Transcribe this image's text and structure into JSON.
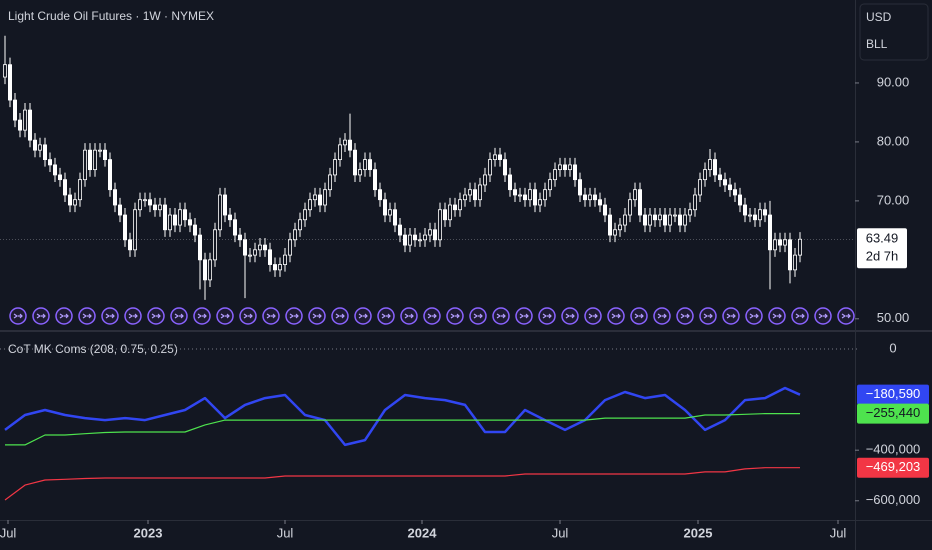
{
  "chart_data": [
    {
      "type": "candlestick",
      "title": "Light Crude Oil Futures · 1W · NYMEX",
      "currency": "USD",
      "unit": "BLL",
      "countdown": "2d 7h",
      "color": "#ffffff",
      "open": [
        91.0,
        93.1,
        87.1,
        83.7,
        82.0,
        85.4,
        80.3,
        78.6,
        79.5,
        77.0,
        76.1,
        74.4,
        73.6,
        71.0,
        69.3,
        70.2,
        73.6,
        78.6,
        75.3,
        78.6,
        78.6,
        77.0,
        71.9,
        69.3,
        67.6,
        63.4,
        61.7,
        68.5,
        70.2,
        70.2,
        69.3,
        68.5,
        69.3,
        65.1,
        67.6,
        65.9,
        68.5,
        66.8,
        65.9,
        64.2,
        60.0,
        56.6,
        60.0,
        65.1,
        71.0,
        67.6,
        66.8,
        64.2,
        63.4,
        60.8,
        60.8,
        61.7,
        62.5,
        61.7,
        59.2,
        58.3,
        59.2,
        60.8,
        63.4,
        65.1,
        66.8,
        68.5,
        70.2,
        71.0,
        69.3,
        71.9,
        74.4,
        77.0,
        79.5,
        80.3,
        78.6,
        74.4,
        75.3,
        77.0,
        75.3,
        71.9,
        70.2,
        67.6,
        68.5,
        65.9,
        64.2,
        62.5,
        64.2,
        63.4,
        63.4,
        64.2,
        65.1,
        63.4,
        68.5,
        66.8,
        69.3,
        68.5,
        70.2,
        71.0,
        71.9,
        70.2,
        72.7,
        74.4,
        77.0,
        77.8,
        77.0,
        74.4,
        71.9,
        71.0,
        71.0,
        70.2,
        71.9,
        69.3,
        70.2,
        71.9,
        73.6,
        75.3,
        76.1,
        75.3,
        76.1,
        73.6,
        71.0,
        70.2,
        71.0,
        70.2,
        69.3,
        67.6,
        64.2,
        65.1,
        65.9,
        67.6,
        70.2,
        71.9,
        67.6,
        65.9,
        67.6,
        66.8,
        67.6,
        65.9,
        67.6,
        67.6,
        65.9,
        67.6,
        68.5,
        71.0,
        73.6,
        75.3,
        77.0,
        74.4,
        73.6,
        72.7,
        71.9,
        71.0,
        69.3,
        67.6,
        67.6,
        66.8,
        68.5,
        67.6,
        61.7,
        63.4,
        62.5,
        63.4,
        58.3,
        60.8
      ],
      "high": [
        98.0,
        94.3,
        88.3,
        84.9,
        86.6,
        86.6,
        81.5,
        80.7,
        80.7,
        78.2,
        77.3,
        75.6,
        74.8,
        72.2,
        71.4,
        74.8,
        79.8,
        79.8,
        79.8,
        79.8,
        79.8,
        78.2,
        73.1,
        70.5,
        68.8,
        64.6,
        69.7,
        71.4,
        71.4,
        71.4,
        70.5,
        70.5,
        70.5,
        68.8,
        68.8,
        69.7,
        69.7,
        68.0,
        67.1,
        65.4,
        61.2,
        61.2,
        66.3,
        72.2,
        72.2,
        68.8,
        68.0,
        65.4,
        64.6,
        62.0,
        62.9,
        63.7,
        63.7,
        62.9,
        60.4,
        60.4,
        62.0,
        64.6,
        66.3,
        68.0,
        69.7,
        71.4,
        72.2,
        72.2,
        73.1,
        75.6,
        78.2,
        80.7,
        81.5,
        84.8,
        79.8,
        76.5,
        78.2,
        78.2,
        76.5,
        73.1,
        71.4,
        69.7,
        69.7,
        67.1,
        65.4,
        65.4,
        65.4,
        64.6,
        65.4,
        66.3,
        66.3,
        69.7,
        69.7,
        70.5,
        70.5,
        71.4,
        72.2,
        73.1,
        73.1,
        73.9,
        75.6,
        78.2,
        79.0,
        79.0,
        78.2,
        75.6,
        73.1,
        72.2,
        72.2,
        73.1,
        73.1,
        71.4,
        73.1,
        74.8,
        76.5,
        77.3,
        77.3,
        77.3,
        77.3,
        74.8,
        72.2,
        72.2,
        72.2,
        71.4,
        70.5,
        68.8,
        66.3,
        67.1,
        68.8,
        71.4,
        73.1,
        73.1,
        68.8,
        68.8,
        68.8,
        68.8,
        68.8,
        68.8,
        68.8,
        68.8,
        68.8,
        69.7,
        72.2,
        74.8,
        76.5,
        78.8,
        78.2,
        75.6,
        74.8,
        73.9,
        73.1,
        72.2,
        70.5,
        68.8,
        68.8,
        69.7,
        69.7,
        70.0,
        64.6,
        64.6,
        64.6,
        64.6,
        62.0,
        64.7
      ],
      "low": [
        89.8,
        85.9,
        82.5,
        80.8,
        80.8,
        79.1,
        77.4,
        77.4,
        75.8,
        74.9,
        73.2,
        72.4,
        69.8,
        68.1,
        68.1,
        69.0,
        72.4,
        74.1,
        74.1,
        77.4,
        75.8,
        70.7,
        68.1,
        66.4,
        62.2,
        60.5,
        60.5,
        67.3,
        69.0,
        68.1,
        67.3,
        67.3,
        63.9,
        63.9,
        64.7,
        64.7,
        65.6,
        64.7,
        63.0,
        55.0,
        53.2,
        55.4,
        58.8,
        63.9,
        66.4,
        65.6,
        63.0,
        62.2,
        53.5,
        59.6,
        59.6,
        60.5,
        60.5,
        58.0,
        57.1,
        57.1,
        58.0,
        59.6,
        62.2,
        63.9,
        65.6,
        67.3,
        69.0,
        68.1,
        68.1,
        70.7,
        73.2,
        75.8,
        78.3,
        77.4,
        73.2,
        73.2,
        74.1,
        74.1,
        70.7,
        69.0,
        66.4,
        66.4,
        64.7,
        63.0,
        61.3,
        61.3,
        62.2,
        62.2,
        62.2,
        63.0,
        62.2,
        62.2,
        65.6,
        65.6,
        67.3,
        67.3,
        69.0,
        69.8,
        69.0,
        69.0,
        71.5,
        73.2,
        75.8,
        75.8,
        73.2,
        70.7,
        69.8,
        69.8,
        69.0,
        69.0,
        68.1,
        68.1,
        69.0,
        70.7,
        72.4,
        74.1,
        74.1,
        74.1,
        72.4,
        69.8,
        69.0,
        69.0,
        69.0,
        68.1,
        66.4,
        63.0,
        63.0,
        63.9,
        64.7,
        66.4,
        69.0,
        66.4,
        64.7,
        64.7,
        65.6,
        65.6,
        64.7,
        64.7,
        66.4,
        64.7,
        64.7,
        66.4,
        67.3,
        69.8,
        72.4,
        74.1,
        73.2,
        72.4,
        71.5,
        70.7,
        69.8,
        68.1,
        66.4,
        66.4,
        65.6,
        65.6,
        66.4,
        55.0,
        60.5,
        61.3,
        61.3,
        56.0,
        57.1,
        59.6
      ],
      "close": [
        93.1,
        87.1,
        83.7,
        82.0,
        85.4,
        80.3,
        78.6,
        79.5,
        77.0,
        76.1,
        74.4,
        73.6,
        71.0,
        69.3,
        70.2,
        73.6,
        78.6,
        75.3,
        78.6,
        78.6,
        77.0,
        71.9,
        69.3,
        67.6,
        63.4,
        61.7,
        68.5,
        70.2,
        70.2,
        69.3,
        68.5,
        69.3,
        65.1,
        67.6,
        65.9,
        68.5,
        66.8,
        65.9,
        64.2,
        60.0,
        56.6,
        60.0,
        65.1,
        71.0,
        67.6,
        66.8,
        64.2,
        63.4,
        60.8,
        60.8,
        61.7,
        62.5,
        61.7,
        59.2,
        58.3,
        59.2,
        60.8,
        63.4,
        65.1,
        66.8,
        68.5,
        70.2,
        71.0,
        69.3,
        71.9,
        74.4,
        77.0,
        79.5,
        80.3,
        78.6,
        74.4,
        75.3,
        77.0,
        75.3,
        71.9,
        70.2,
        67.6,
        68.5,
        65.9,
        64.2,
        62.5,
        64.2,
        63.4,
        63.4,
        64.2,
        65.1,
        63.4,
        68.5,
        66.8,
        69.3,
        68.5,
        70.2,
        71.0,
        71.9,
        70.2,
        72.7,
        74.4,
        77.0,
        77.8,
        77.0,
        74.4,
        71.9,
        71.0,
        71.0,
        70.2,
        71.9,
        69.3,
        70.2,
        71.9,
        73.6,
        75.3,
        76.1,
        75.3,
        76.1,
        73.6,
        71.0,
        70.2,
        71.0,
        70.2,
        69.3,
        67.6,
        64.2,
        65.1,
        65.9,
        67.6,
        70.2,
        71.9,
        67.6,
        65.9,
        67.6,
        66.8,
        67.6,
        65.9,
        67.6,
        67.6,
        65.9,
        67.6,
        68.5,
        71.0,
        73.6,
        75.3,
        77.0,
        74.4,
        73.6,
        72.7,
        71.9,
        71.0,
        69.3,
        67.6,
        67.6,
        66.8,
        68.5,
        67.6,
        61.7,
        63.4,
        62.5,
        63.4,
        58.3,
        60.8,
        63.49
      ],
      "xlim": [
        -1,
        170
      ],
      "ylim": [
        48.1,
        104.07
      ],
      "yticks": [
        {
          "value": 50,
          "label": "50.00"
        },
        {
          "value": 70,
          "label": "70.00"
        },
        {
          "value": 80,
          "label": "80.00"
        },
        {
          "value": 90,
          "label": "90.00"
        }
      ]
    },
    {
      "type": "line",
      "title": "CoT MK Coms (208, 0.75, 0.25)",
      "x": [
        0,
        4,
        8,
        12,
        16,
        20,
        24,
        28,
        32,
        36,
        40,
        44,
        48,
        52,
        56,
        60,
        64,
        68,
        72,
        76,
        80,
        84,
        88,
        92,
        96,
        100,
        104,
        108,
        112,
        116,
        120,
        124,
        128,
        132,
        136,
        140,
        144,
        148,
        152,
        156,
        159
      ],
      "series": [
        {
          "color": "#3146f2",
          "values": [
            -320000,
            -261000,
            -241000,
            -261000,
            -273000,
            -281000,
            -273000,
            -281000,
            -261000,
            -241000,
            -194000,
            -273000,
            -221000,
            -194000,
            -182000,
            -261000,
            -281000,
            -379000,
            -360000,
            -241000,
            -182000,
            -194000,
            -202000,
            -221000,
            -328000,
            -328000,
            -241000,
            -281000,
            -320000,
            -281000,
            -202000,
            -170000,
            -194000,
            -182000,
            -241000,
            -320000,
            -281000,
            -202000,
            -194000,
            -154000,
            -180590
          ],
          "value_labels": [
            null,
            null,
            null,
            null,
            null,
            null,
            null,
            null,
            null,
            null,
            null,
            null,
            null,
            null,
            null,
            null,
            null,
            null,
            null,
            null,
            null,
            null,
            null,
            null,
            null,
            null,
            null,
            null,
            null,
            null,
            null,
            null,
            null,
            null,
            null,
            null,
            null,
            null,
            null,
            null,
            "−180,590"
          ]
        },
        {
          "color": "#4ee34e",
          "values": [
            -379000,
            -379000,
            -340000,
            -340000,
            -335000,
            -330000,
            -328000,
            -328000,
            -328000,
            -328000,
            -300000,
            -281000,
            -281000,
            -281000,
            -281000,
            -281000,
            -281000,
            -281000,
            -281000,
            -281000,
            -281000,
            -281000,
            -281000,
            -281000,
            -281000,
            -281000,
            -281000,
            -281000,
            -281000,
            -281000,
            -273000,
            -273000,
            -273000,
            -273000,
            -273000,
            -261000,
            -261000,
            -258000,
            -255440,
            -255440,
            -255440
          ],
          "value_labels": [
            null,
            null,
            null,
            null,
            null,
            null,
            null,
            null,
            null,
            null,
            null,
            null,
            null,
            null,
            null,
            null,
            null,
            null,
            null,
            null,
            null,
            null,
            null,
            null,
            null,
            null,
            null,
            null,
            null,
            null,
            null,
            null,
            null,
            null,
            null,
            null,
            null,
            null,
            null,
            null,
            "−255,440"
          ]
        },
        {
          "color": "#f23645",
          "values": [
            -597000,
            -538000,
            -518000,
            -515000,
            -512000,
            -510000,
            -510000,
            -510000,
            -510000,
            -510000,
            -510000,
            -510000,
            -510000,
            -510000,
            -502000,
            -502000,
            -502000,
            -502000,
            -502000,
            -502000,
            -502000,
            -502000,
            -502000,
            -502000,
            -502000,
            -502000,
            -494000,
            -494000,
            -494000,
            -494000,
            -494000,
            -494000,
            -494000,
            -494000,
            -494000,
            -486000,
            -486000,
            -474000,
            -469203,
            -469203,
            -469203
          ],
          "value_labels": [
            null,
            null,
            null,
            null,
            null,
            null,
            null,
            null,
            null,
            null,
            null,
            null,
            null,
            null,
            null,
            null,
            null,
            null,
            null,
            null,
            null,
            null,
            null,
            null,
            null,
            null,
            null,
            null,
            null,
            null,
            null,
            null,
            null,
            null,
            null,
            null,
            null,
            null,
            null,
            null,
            "−469,203"
          ]
        }
      ],
      "xlim": [
        -1,
        170
      ],
      "ylim": [
        -676000,
        35600
      ],
      "yticks": [
        0,
        {
          "value": -400000,
          "label": "−400,000"
        },
        {
          "value": -600000,
          "label": "−600,000"
        }
      ],
      "xticks": [
        {
          "value": 0.6,
          "label": "Jul"
        },
        {
          "value": 28.6,
          "label": "2023"
        },
        {
          "value": 56,
          "label": "Jul"
        },
        {
          "value": 83.4,
          "label": "2024"
        },
        {
          "value": 111,
          "label": "Jul"
        },
        {
          "value": 138.6,
          "label": "2025"
        },
        {
          "value": 166.6,
          "label": "Jul"
        }
      ]
    }
  ]
}
